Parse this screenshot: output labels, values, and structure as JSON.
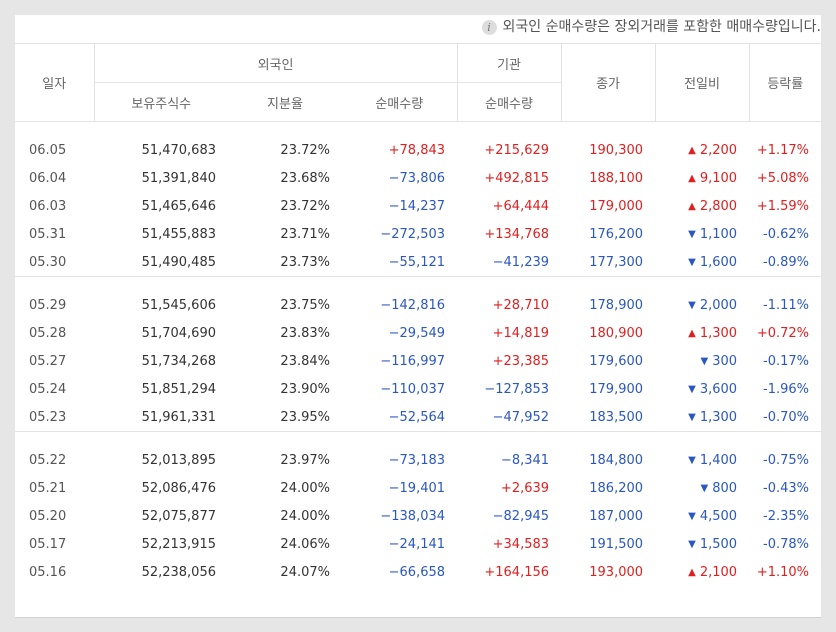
{
  "notice": "외국인 순매수량은 장외거래를 포함한 매매수량입니다.",
  "headers": {
    "date": "일자",
    "foreign": "외국인",
    "holdings": "보유주식수",
    "ratio": "지분율",
    "foreign_net": "순매수량",
    "institution": "기관",
    "inst_net": "순매수량",
    "close": "종가",
    "change": "전일비",
    "rate": "등락률"
  },
  "colors": {
    "up": "#e02020",
    "down": "#2b57c2"
  },
  "groups": [
    [
      {
        "date": "06.05",
        "holdings": "51,470,683",
        "ratio": "23.72%",
        "foreign_net": "+78,843",
        "inst_net": "+215,629",
        "close": "190,300",
        "change": "2,200",
        "dir": "up",
        "rate": "+1.17%"
      },
      {
        "date": "06.04",
        "holdings": "51,391,840",
        "ratio": "23.68%",
        "foreign_net": "−73,806",
        "inst_net": "+492,815",
        "close": "188,100",
        "change": "9,100",
        "dir": "up",
        "rate": "+5.08%"
      },
      {
        "date": "06.03",
        "holdings": "51,465,646",
        "ratio": "23.72%",
        "foreign_net": "−14,237",
        "inst_net": "+64,444",
        "close": "179,000",
        "change": "2,800",
        "dir": "up",
        "rate": "+1.59%"
      },
      {
        "date": "05.31",
        "holdings": "51,455,883",
        "ratio": "23.71%",
        "foreign_net": "−272,503",
        "inst_net": "+134,768",
        "close": "176,200",
        "change": "1,100",
        "dir": "down",
        "rate": "-0.62%"
      },
      {
        "date": "05.30",
        "holdings": "51,490,485",
        "ratio": "23.73%",
        "foreign_net": "−55,121",
        "inst_net": "−41,239",
        "close": "177,300",
        "change": "1,600",
        "dir": "down",
        "rate": "-0.89%"
      }
    ],
    [
      {
        "date": "05.29",
        "holdings": "51,545,606",
        "ratio": "23.75%",
        "foreign_net": "−142,816",
        "inst_net": "+28,710",
        "close": "178,900",
        "change": "2,000",
        "dir": "down",
        "rate": "-1.11%"
      },
      {
        "date": "05.28",
        "holdings": "51,704,690",
        "ratio": "23.83%",
        "foreign_net": "−29,549",
        "inst_net": "+14,819",
        "close": "180,900",
        "change": "1,300",
        "dir": "up",
        "rate": "+0.72%"
      },
      {
        "date": "05.27",
        "holdings": "51,734,268",
        "ratio": "23.84%",
        "foreign_net": "−116,997",
        "inst_net": "+23,385",
        "close": "179,600",
        "change": "300",
        "dir": "down",
        "rate": "-0.17%"
      },
      {
        "date": "05.24",
        "holdings": "51,851,294",
        "ratio": "23.90%",
        "foreign_net": "−110,037",
        "inst_net": "−127,853",
        "close": "179,900",
        "change": "3,600",
        "dir": "down",
        "rate": "-1.96%"
      },
      {
        "date": "05.23",
        "holdings": "51,961,331",
        "ratio": "23.95%",
        "foreign_net": "−52,564",
        "inst_net": "−47,952",
        "close": "183,500",
        "change": "1,300",
        "dir": "down",
        "rate": "-0.70%"
      }
    ],
    [
      {
        "date": "05.22",
        "holdings": "52,013,895",
        "ratio": "23.97%",
        "foreign_net": "−73,183",
        "inst_net": "−8,341",
        "close": "184,800",
        "change": "1,400",
        "dir": "down",
        "rate": "-0.75%"
      },
      {
        "date": "05.21",
        "holdings": "52,086,476",
        "ratio": "24.00%",
        "foreign_net": "−19,401",
        "inst_net": "+2,639",
        "close": "186,200",
        "change": "800",
        "dir": "down",
        "rate": "-0.43%"
      },
      {
        "date": "05.20",
        "holdings": "52,075,877",
        "ratio": "24.00%",
        "foreign_net": "−138,034",
        "inst_net": "−82,945",
        "close": "187,000",
        "change": "4,500",
        "dir": "down",
        "rate": "-2.35%"
      },
      {
        "date": "05.17",
        "holdings": "52,213,915",
        "ratio": "24.06%",
        "foreign_net": "−24,141",
        "inst_net": "+34,583",
        "close": "191,500",
        "change": "1,500",
        "dir": "down",
        "rate": "-0.78%"
      },
      {
        "date": "05.16",
        "holdings": "52,238,056",
        "ratio": "24.07%",
        "foreign_net": "−66,658",
        "inst_net": "+164,156",
        "close": "193,000",
        "change": "2,100",
        "dir": "up",
        "rate": "+1.10%"
      }
    ]
  ]
}
